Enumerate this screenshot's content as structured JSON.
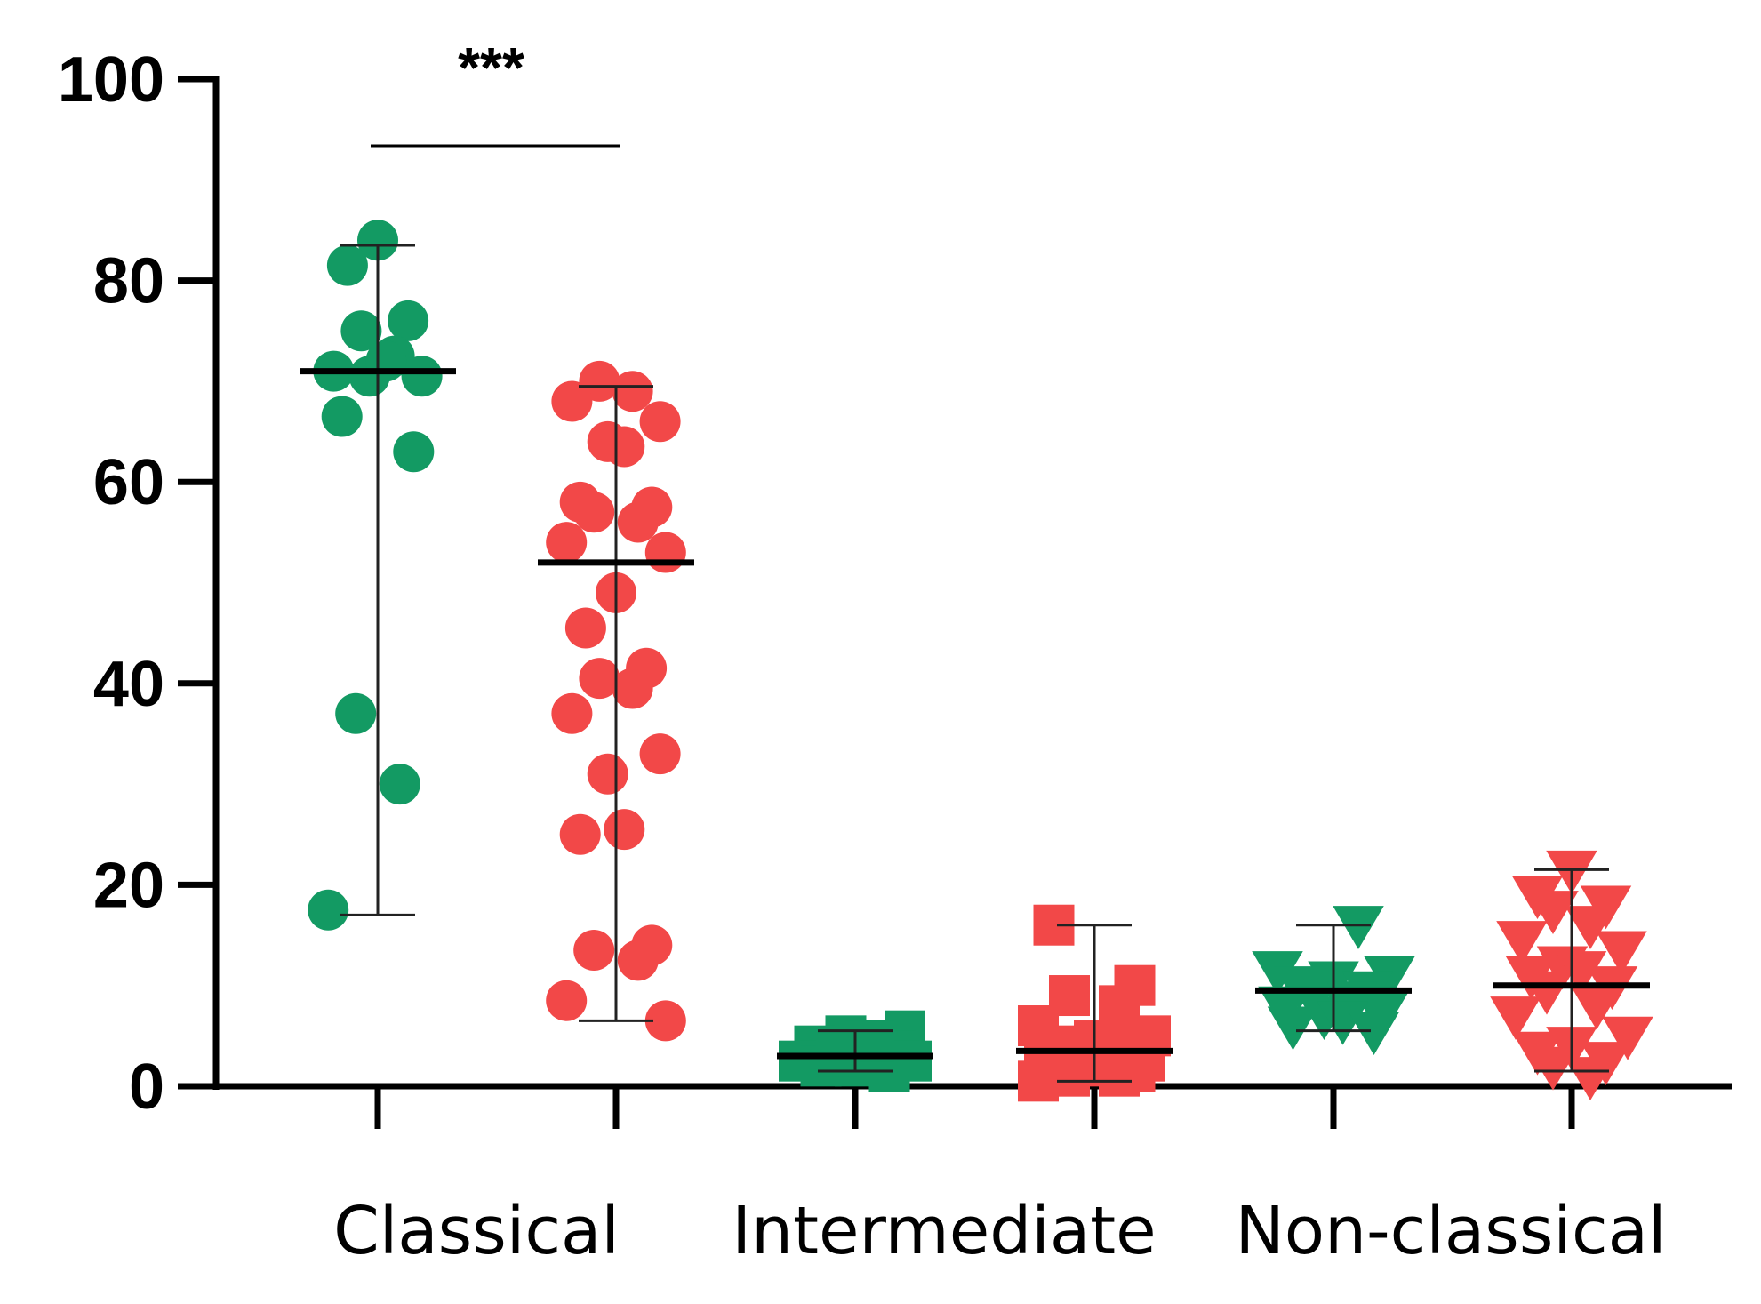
{
  "chart_data": {
    "type": "scatter",
    "title": "",
    "xlabel": "",
    "ylabel": "",
    "ylim": [
      0,
      100
    ],
    "yticks": [
      0,
      20,
      40,
      60,
      80,
      100
    ],
    "ytick_labels": [
      "0",
      "20",
      "40",
      "60",
      "80",
      "100"
    ],
    "grid": false,
    "legend": "none",
    "categories": [
      "Classical",
      "Intermediate",
      "Non-classical"
    ],
    "colors": {
      "green": "#139a63",
      "red": "#f24848",
      "axis": "#000000"
    },
    "significance": [
      {
        "label": "***",
        "from_group": 0,
        "to_group": 1
      }
    ],
    "groups": [
      {
        "category": "Classical",
        "color": "green",
        "marker": "circle",
        "mean": 71,
        "whisker_low": 17,
        "whisker_high": 83.5,
        "values": [
          84,
          81.5,
          76,
          75,
          72.5,
          71,
          70.5,
          70.5,
          72,
          66.5,
          63,
          37,
          30,
          17.5
        ]
      },
      {
        "category": "Classical",
        "color": "red",
        "marker": "circle",
        "mean": 52,
        "whisker_low": 6.5,
        "whisker_high": 69.5,
        "values": [
          70,
          69,
          68,
          66,
          64,
          63.5,
          58,
          57.5,
          57,
          56,
          54,
          53,
          49,
          45.5,
          41.5,
          40.5,
          39.5,
          37,
          33,
          31,
          25.5,
          25,
          14,
          13.5,
          12.5,
          8.5,
          6.5
        ]
      },
      {
        "category": "Intermediate",
        "color": "green",
        "marker": "square",
        "mean": 3,
        "whisker_low": 1.5,
        "whisker_high": 5.5,
        "values": [
          5.5,
          5,
          4.5,
          4,
          3.5,
          3,
          3,
          2.5,
          2.5,
          2,
          2,
          1.5,
          3,
          4.5
        ]
      },
      {
        "category": "Intermediate",
        "color": "red",
        "marker": "square",
        "mean": 3.5,
        "whisker_low": 0.5,
        "whisker_high": 16,
        "values": [
          16,
          10,
          9,
          8,
          6,
          5,
          4.5,
          4,
          4,
          3.5,
          3,
          3,
          2.5,
          2.5,
          2,
          2,
          1.5,
          1,
          1,
          0.5
        ]
      },
      {
        "category": "Non-classical",
        "color": "green",
        "marker": "triangle-down",
        "mean": 9.5,
        "whisker_low": 5.5,
        "whisker_high": 16,
        "values": [
          16,
          11.5,
          11,
          10.5,
          10,
          9.5,
          9,
          8.5,
          8,
          7.5,
          7,
          6.5,
          6,
          5.5
        ]
      },
      {
        "category": "Non-classical",
        "color": "red",
        "marker": "triangle-down",
        "mean": 10,
        "whisker_low": 1.5,
        "whisker_high": 21.5,
        "values": [
          21.5,
          19,
          18,
          17.5,
          16,
          14.5,
          13.5,
          12,
          11.5,
          11,
          10,
          9.5,
          8,
          7,
          5,
          4,
          3.5,
          2.5,
          2,
          1
        ]
      }
    ]
  }
}
